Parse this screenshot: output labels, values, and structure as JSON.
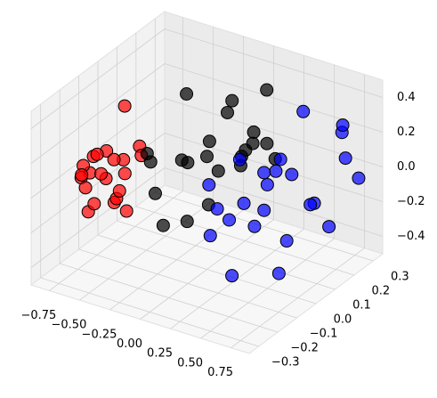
{
  "chart_data": {
    "type": "scatter3d",
    "xlim": [
      -0.9,
      0.9
    ],
    "ylim": [
      -0.35,
      0.35
    ],
    "zlim": [
      -0.5,
      0.5
    ],
    "xticks": [
      {
        "value": -0.75,
        "label": "−0.75"
      },
      {
        "value": -0.5,
        "label": "−0.50"
      },
      {
        "value": -0.25,
        "label": "−0.25"
      },
      {
        "value": 0,
        "label": "0.00"
      },
      0.25,
      {
        "value": 0.5,
        "label": "0.50"
      },
      0.75
    ],
    "yticks": [
      {
        "value": -0.3,
        "label": "−0.3"
      },
      {
        "value": -0.2,
        "label": "−0.2"
      },
      {
        "value": -0.1,
        "label": "−0.1"
      },
      {
        "value": 0,
        "label": "0.0"
      },
      0.1,
      0.2,
      0.3
    ],
    "zticks": [
      {
        "value": -0.4,
        "label": "−0.4"
      },
      {
        "value": -0.2,
        "label": "−0.2"
      },
      {
        "value": 0,
        "label": "0.0"
      },
      0.2,
      0.4
    ],
    "grid": true,
    "series": [
      {
        "color": "#ff0000",
        "x": [
          -0.62,
          -0.55,
          -0.48,
          -0.7,
          -0.52,
          -0.45,
          -0.58,
          -0.66,
          -0.5,
          -0.4,
          -0.6,
          -0.53,
          -0.47,
          -0.72,
          -0.57,
          -0.43,
          -0.64,
          -0.51,
          -0.38,
          -0.56,
          -0.49,
          -0.61
        ],
        "y": [
          -0.22,
          -0.18,
          -0.25,
          -0.15,
          -0.1,
          -0.2,
          -0.28,
          -0.24,
          -0.12,
          -0.22,
          -0.05,
          -0.3,
          -0.16,
          -0.2,
          -0.26,
          -0.08,
          -0.12,
          -0.02,
          -0.18,
          -0.22,
          -0.28,
          -0.1
        ],
        "z": [
          0.1,
          0.05,
          0.15,
          0.12,
          0.02,
          -0.05,
          0.2,
          0.08,
          0.12,
          0.0,
          0.35,
          0.1,
          -0.02,
          0.05,
          -0.08,
          0.18,
          0.14,
          0.06,
          -0.1,
          0.22,
          0.0,
          0.08
        ]
      },
      {
        "color": "#000000",
        "x": [
          -0.05,
          0.1,
          0.2,
          -0.15,
          0.05,
          0.25,
          0.0,
          0.15,
          -0.1,
          0.3,
          0.08,
          0.18,
          -0.02,
          0.22,
          0.12,
          -0.2,
          0.28,
          0.03,
          0.16,
          0.35,
          -0.08,
          0.1
        ],
        "y": [
          -0.1,
          -0.05,
          0.05,
          -0.2,
          0.1,
          -0.15,
          0.0,
          0.15,
          -0.25,
          0.05,
          -0.28,
          0.2,
          0.12,
          -0.08,
          -0.18,
          0.02,
          0.18,
          -0.12,
          0.08,
          -0.02,
          -0.22,
          0.25
        ],
        "z": [
          0.2,
          0.3,
          0.1,
          0.25,
          0.4,
          0.05,
          0.15,
          0.2,
          0.35,
          0.25,
          0.0,
          0.1,
          0.3,
          0.18,
          -0.05,
          0.45,
          0.05,
          0.22,
          0.12,
          0.28,
          0.1,
          0.35
        ]
      },
      {
        "color": "#0000ff",
        "x": [
          0.4,
          0.55,
          0.7,
          0.6,
          0.45,
          0.8,
          0.35,
          0.65,
          0.5,
          0.75,
          0.58,
          0.42,
          0.85,
          0.62,
          0.48,
          0.72,
          0.38,
          0.68,
          0.53,
          0.78,
          0.3,
          0.57,
          0.66,
          0.44
        ],
        "y": [
          -0.2,
          -0.1,
          0.0,
          -0.25,
          0.1,
          0.2,
          -0.05,
          0.15,
          -0.3,
          0.25,
          0.05,
          -0.15,
          0.1,
          -0.2,
          0.2,
          -0.08,
          0.12,
          0.28,
          -0.02,
          0.3,
          -0.18,
          0.18,
          -0.12,
          0.02
        ],
        "z": [
          0.1,
          -0.05,
          0.2,
          -0.2,
          0.15,
          0.3,
          0.25,
          -0.1,
          0.05,
          0.1,
          -0.25,
          0.0,
          -0.15,
          0.18,
          0.35,
          -0.3,
          0.05,
          0.25,
          0.12,
          -0.05,
          0.2,
          -0.15,
          0.3,
          -0.08
        ]
      }
    ]
  }
}
